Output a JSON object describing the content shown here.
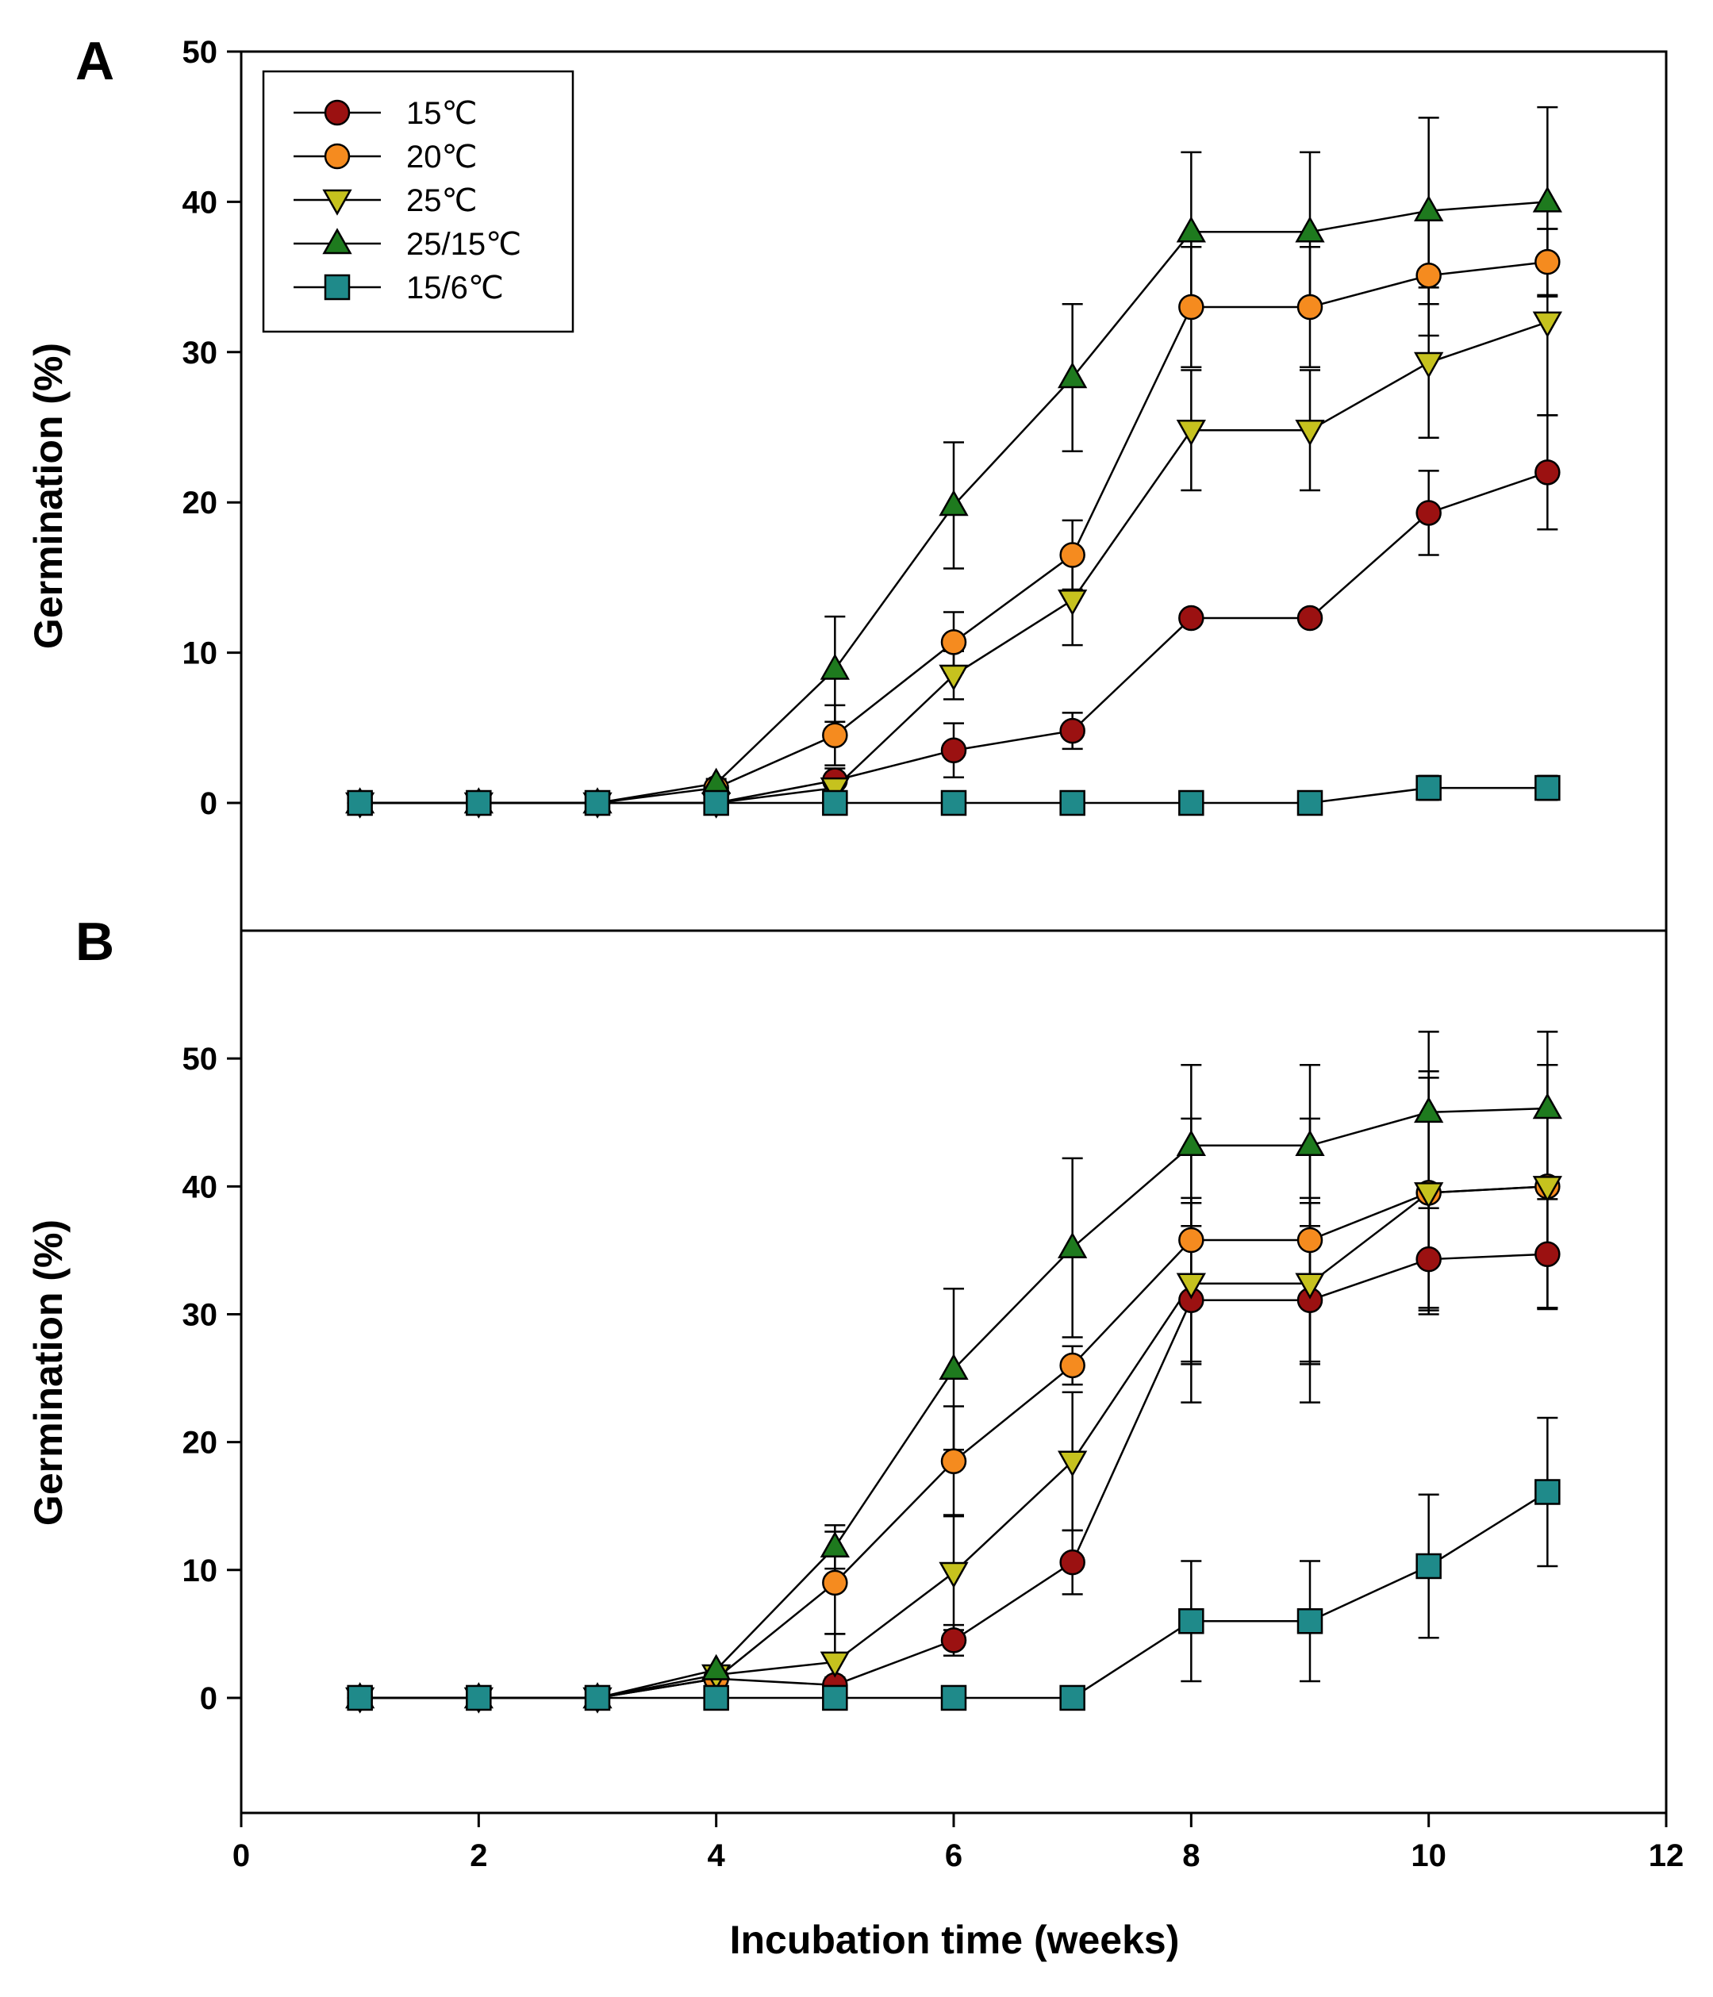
{
  "colors": {
    "15C": "#9b1111",
    "20C": "#f58b1f",
    "25C": "#c6c21e",
    "25_15C": "#1e7a1e",
    "15_6C": "#1f8a8a",
    "axis": "#000000"
  },
  "legend": {
    "items": [
      {
        "key": "15C",
        "label": "15℃",
        "marker": "circle"
      },
      {
        "key": "20C",
        "label": "20℃",
        "marker": "circle"
      },
      {
        "key": "25C",
        "label": "25℃",
        "marker": "triangle-down"
      },
      {
        "key": "25_15C",
        "label": "25/15℃",
        "marker": "triangle-up"
      },
      {
        "key": "15_6C",
        "label": "15/6℃",
        "marker": "square"
      }
    ]
  },
  "chart_data": [
    {
      "panel": "A",
      "type": "line",
      "xlabel": "Incubation time (weeks)",
      "ylabel": "Germination (%)",
      "xlim": [
        0,
        12
      ],
      "ylim": [
        -8.5,
        50
      ],
      "xticks": [
        0,
        2,
        4,
        6,
        8,
        10,
        12
      ],
      "yticks": [
        0,
        10,
        20,
        30,
        40,
        50
      ],
      "x": [
        1,
        2,
        3,
        4,
        5,
        6,
        7,
        8,
        9,
        10,
        11
      ],
      "series": [
        {
          "key": "15C",
          "name": "15℃",
          "values": [
            0,
            0,
            0,
            0,
            1.5,
            3.5,
            4.8,
            12.3,
            12.3,
            19.3,
            22.0
          ],
          "errors": [
            0,
            0,
            0,
            0,
            0.8,
            1.8,
            1.2,
            0.4,
            0.4,
            2.8,
            3.8
          ]
        },
        {
          "key": "20C",
          "name": "20℃",
          "values": [
            0,
            0,
            0,
            1.0,
            4.5,
            10.7,
            16.5,
            33.0,
            33.0,
            35.1,
            36.0
          ],
          "errors": [
            0,
            0,
            0,
            0.4,
            2.0,
            2.0,
            2.3,
            4.0,
            4.0,
            4.0,
            2.2
          ]
        },
        {
          "key": "25C",
          "name": "25℃",
          "values": [
            0,
            0,
            0,
            0,
            1.0,
            8.5,
            13.5,
            24.8,
            24.8,
            29.3,
            32.0
          ],
          "errors": [
            0,
            0,
            0,
            0,
            0.5,
            1.6,
            3.0,
            4.0,
            4.0,
            5.0,
            6.2
          ]
        },
        {
          "key": "25_15C",
          "name": "25/15℃",
          "values": [
            0,
            0,
            0,
            1.3,
            8.9,
            19.8,
            28.3,
            38.0,
            38.0,
            39.4,
            40.0
          ],
          "errors": [
            0,
            0,
            0,
            0.3,
            3.5,
            4.2,
            4.9,
            5.3,
            5.3,
            6.2,
            6.3
          ]
        },
        {
          "key": "15_6C",
          "name": "15/6℃",
          "values": [
            0,
            0,
            0,
            0,
            0,
            0,
            0,
            0,
            0,
            1.0,
            1.0
          ],
          "errors": [
            0,
            0,
            0,
            0,
            0,
            0,
            0,
            0,
            0,
            0.8,
            0.8
          ]
        }
      ]
    },
    {
      "panel": "B",
      "type": "line",
      "xlabel": "Incubation time (weeks)",
      "ylabel": "Germination (%)",
      "xlim": [
        0,
        12
      ],
      "ylim": [
        -9,
        60
      ],
      "xticks": [
        0,
        2,
        4,
        6,
        8,
        10,
        12
      ],
      "yticks": [
        0,
        10,
        20,
        30,
        40,
        50
      ],
      "x": [
        1,
        2,
        3,
        4,
        5,
        6,
        7,
        8,
        9,
        10,
        11
      ],
      "series": [
        {
          "key": "15C",
          "name": "15℃",
          "values": [
            0,
            0,
            0,
            1.5,
            1.0,
            4.5,
            10.6,
            31.1,
            31.1,
            34.3,
            34.7
          ],
          "errors": [
            0,
            0,
            0,
            0.3,
            0.6,
            1.2,
            2.5,
            8.0,
            8.0,
            4.0,
            4.3
          ]
        },
        {
          "key": "20C",
          "name": "20℃",
          "values": [
            0,
            0,
            0,
            1.5,
            9.0,
            18.5,
            26.0,
            35.8,
            35.8,
            39.5,
            40.0
          ],
          "errors": [
            0,
            0,
            0,
            0.3,
            4.0,
            4.3,
            1.5,
            9.5,
            9.5,
            9.5,
            9.5
          ]
        },
        {
          "key": "25C",
          "name": "25℃",
          "values": [
            0,
            0,
            0,
            1.8,
            2.8,
            9.8,
            18.5,
            32.4,
            32.4,
            39.5,
            40.0
          ],
          "errors": [
            0,
            0,
            0,
            0.3,
            2.2,
            4.5,
            5.4,
            6.3,
            6.3,
            9.0,
            9.5
          ]
        },
        {
          "key": "25_15C",
          "name": "25/15℃",
          "values": [
            0,
            0,
            0,
            2.2,
            11.8,
            25.7,
            35.2,
            43.2,
            43.2,
            45.8,
            46.1
          ],
          "errors": [
            0,
            0,
            0,
            0.3,
            1.7,
            6.3,
            7.0,
            6.3,
            6.3,
            6.3,
            6.0
          ]
        },
        {
          "key": "15_6C",
          "name": "15/6℃",
          "values": [
            0,
            0,
            0,
            0,
            0,
            0,
            0,
            6.0,
            6.0,
            10.3,
            16.1
          ],
          "errors": [
            0,
            0,
            0,
            0,
            0,
            0,
            0,
            4.7,
            4.7,
            5.6,
            5.8
          ]
        }
      ]
    }
  ]
}
